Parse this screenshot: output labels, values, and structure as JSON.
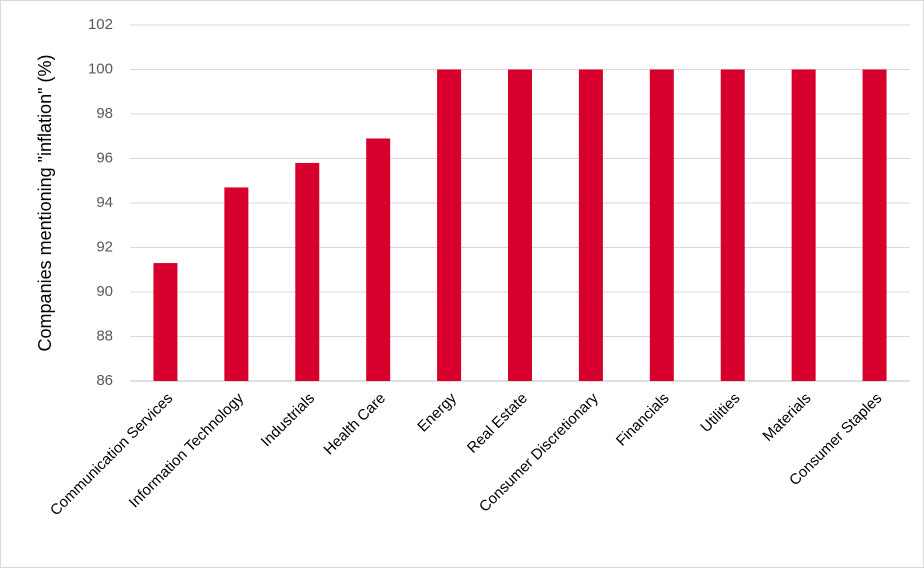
{
  "chart_data": {
    "type": "bar",
    "y_label": "Companies mentioning \"inflation\" (%)",
    "categories": [
      "Communication Services",
      "Information Technology",
      "Industrials",
      "Health Care",
      "Energy",
      "Real Estate",
      "Consumer Discretionary",
      "Financials",
      "Utilities",
      "Materials",
      "Consumer Staples"
    ],
    "values": [
      91.3,
      94.7,
      95.8,
      96.9,
      100,
      100,
      100,
      100,
      100,
      100,
      100
    ],
    "color": "#d7002c",
    "ylim": [
      86,
      102
    ],
    "yticks": [
      86,
      88,
      90,
      92,
      94,
      96,
      98,
      100,
      102
    ],
    "grid": true
  }
}
